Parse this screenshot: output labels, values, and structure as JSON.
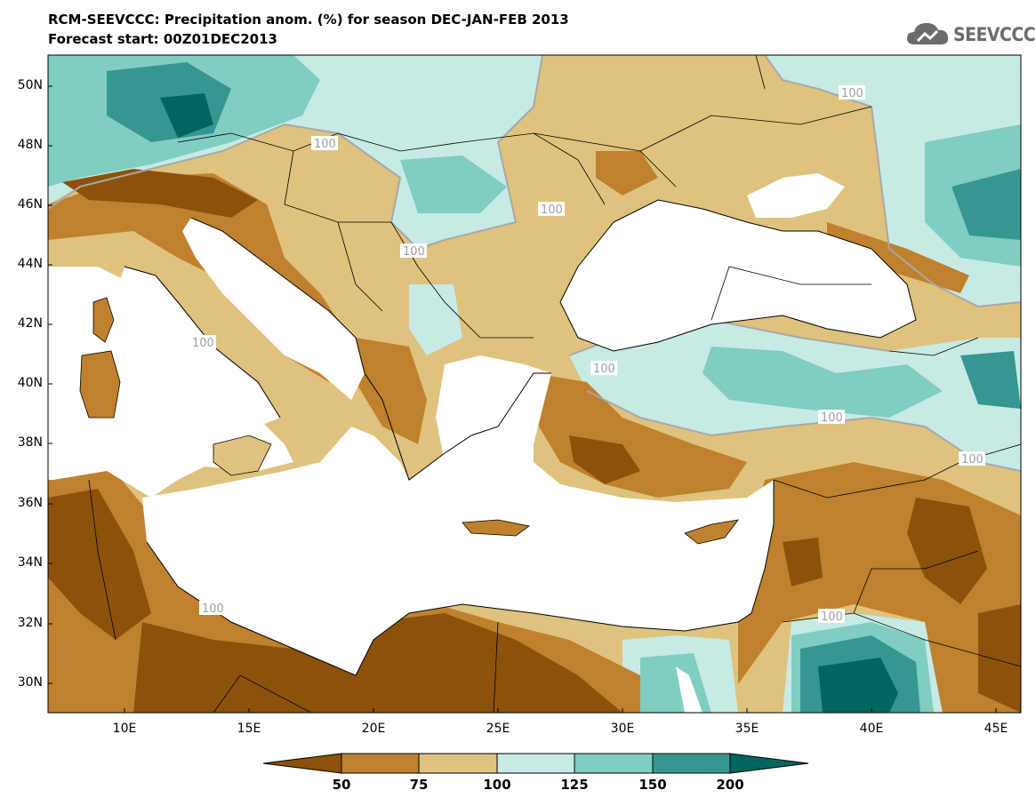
{
  "header": {
    "title_line1": "RCM-SEEVCCC: Precipitation anom. (%) for season DEC-JAN-FEB 2013",
    "title_line2": "Forecast start: 00Z01DEC2013",
    "logo_text": "SEEVCCC"
  },
  "map": {
    "lat_labels": [
      "50N",
      "48N",
      "46N",
      "44N",
      "42N",
      "40N",
      "38N",
      "36N",
      "34N",
      "32N",
      "30N"
    ],
    "lon_labels": [
      "10E",
      "15E",
      "20E",
      "25E",
      "30E",
      "35E",
      "40E",
      "45E"
    ],
    "contour_labels": [
      "100",
      "100",
      "100",
      "100",
      "100",
      "100",
      "100",
      "100",
      "100",
      "100"
    ]
  },
  "colorbar": {
    "labels": [
      "50",
      "75",
      "100",
      "125",
      "150",
      "200"
    ],
    "colors": [
      "#8c510a",
      "#bf812d",
      "#dfc27d",
      "#c7eae5",
      "#80cdc1",
      "#35978f",
      "#01665e"
    ]
  },
  "colors": {
    "sea": "#ffffff",
    "coastline": "#000000",
    "contour_100": "#a8a8a8"
  }
}
